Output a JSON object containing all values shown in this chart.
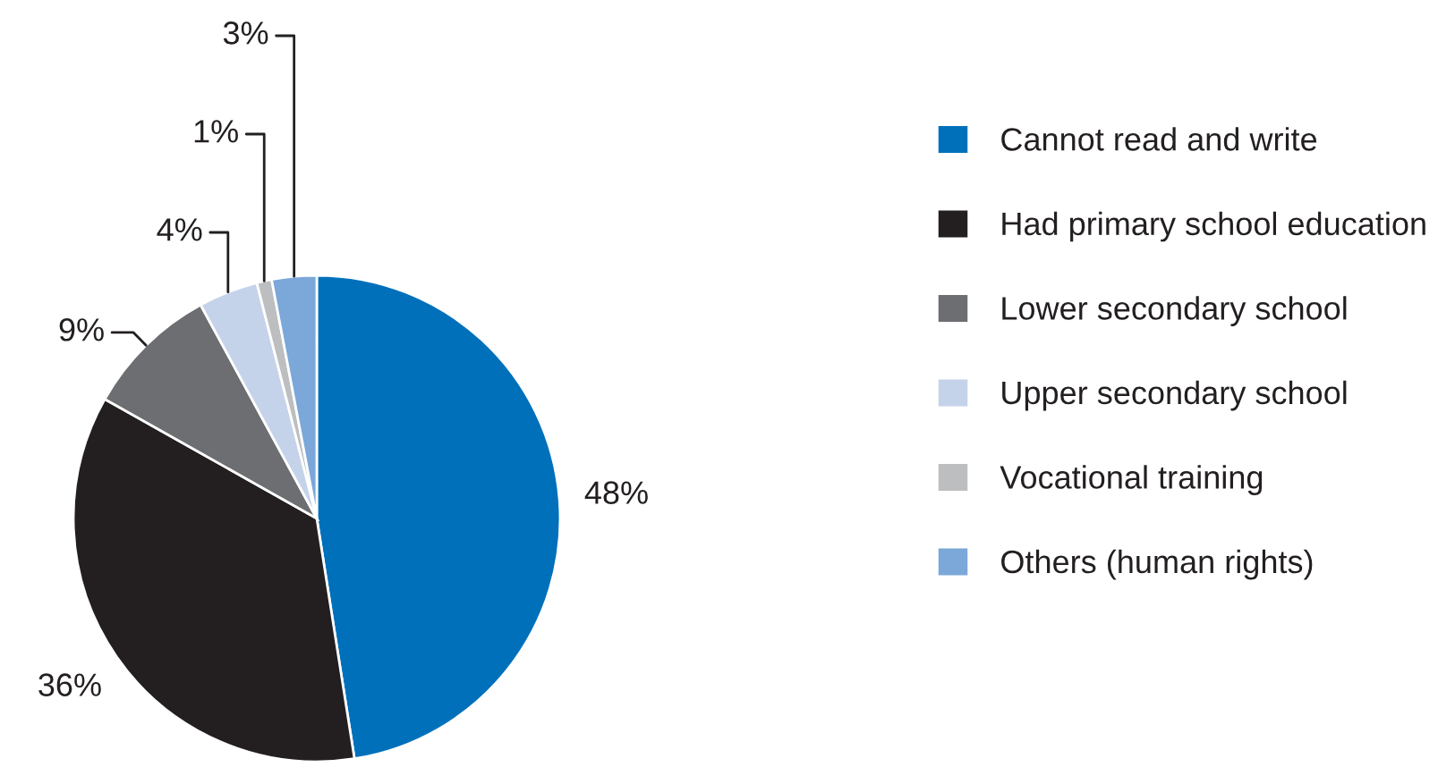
{
  "chart_data": {
    "type": "pie",
    "categories": [
      "Cannot read and write",
      "Had primary school education",
      "Lower secondary school",
      "Upper secondary school",
      "Vocational training",
      "Others (human rights)"
    ],
    "values": [
      48,
      36,
      9,
      4,
      1,
      3
    ],
    "value_labels": [
      "48%",
      "36%",
      "9%",
      "4%",
      "1%",
      "3%"
    ],
    "colors": [
      "#0070bb",
      "#231f20",
      "#6d6e71",
      "#c5d3ea",
      "#bcbec0",
      "#7ba7d9"
    ],
    "legend": "right"
  }
}
